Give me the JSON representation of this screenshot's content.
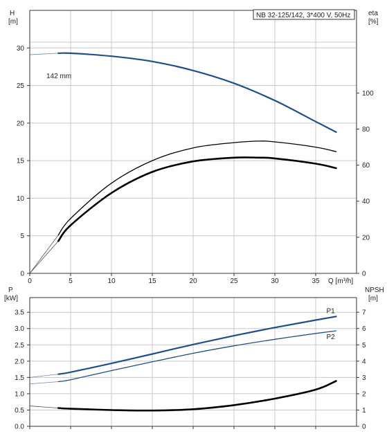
{
  "chart_data": [
    {
      "type": "line",
      "title": "NB 32-125/142, 3*400 V, 50Hz",
      "xlabel": "Q [m³/h]",
      "ylabel_left": [
        "H",
        "[m]"
      ],
      "ylabel_right": [
        "eta",
        "[%]"
      ],
      "x_ticks": [
        0,
        5,
        10,
        15,
        20,
        25,
        30,
        35
      ],
      "y_left_ticks": [
        0,
        5,
        10,
        15,
        20,
        25,
        30
      ],
      "y_right_ticks": [
        0,
        20,
        40,
        60,
        80,
        100
      ],
      "xlim": [
        0,
        40
      ],
      "ylim_left": [
        0,
        35
      ],
      "ylim_right": [
        0,
        145.8
      ],
      "grid": true,
      "annotation": "142 mm",
      "series": [
        {
          "axis": "left",
          "color": "#1f4e8c",
          "width": 2.2,
          "dashed_extension": true,
          "x": [
            0,
            3.5,
            5,
            10,
            15,
            20,
            25,
            30,
            35,
            37.5
          ],
          "y": [
            29.1,
            29.3,
            29.3,
            28.9,
            28.2,
            27.0,
            25.3,
            23.0,
            20.2,
            18.8
          ]
        },
        {
          "axis": "left",
          "color": "#000000",
          "width": 1.3,
          "dashed_extension": true,
          "x": [
            0,
            3.5,
            5,
            10,
            15,
            20,
            25,
            28,
            30,
            35,
            37.5
          ],
          "y": [
            0,
            5.1,
            7.3,
            12.0,
            15.0,
            16.7,
            17.4,
            17.6,
            17.5,
            16.8,
            16.2
          ]
        },
        {
          "axis": "left",
          "color": "#000000",
          "width": 2.6,
          "dashed_extension": true,
          "x": [
            0,
            3.5,
            5,
            10,
            15,
            20,
            25,
            28,
            30,
            35,
            37.5
          ],
          "y": [
            0,
            4.3,
            6.4,
            10.7,
            13.5,
            14.9,
            15.4,
            15.4,
            15.3,
            14.6,
            14.0
          ]
        }
      ]
    },
    {
      "type": "line",
      "ylabel_left": [
        "P",
        "[kW]"
      ],
      "ylabel_right": [
        "NPSH",
        "[m]"
      ],
      "y_left_ticks": [
        0.0,
        0.5,
        1.0,
        1.5,
        2.0,
        2.5,
        3.0,
        3.5
      ],
      "y_left_tick_labels": [
        "0.0",
        "0.5",
        "1.0",
        "1.5",
        "2.0",
        "2.5",
        "3.0",
        "3.5"
      ],
      "y_right_ticks": [
        0,
        1,
        2,
        3,
        4,
        5,
        6,
        7
      ],
      "xlim": [
        0,
        40
      ],
      "ylim_left": [
        0,
        3.95
      ],
      "ylim_right": [
        0,
        7.9
      ],
      "grid": true,
      "series": [
        {
          "name": "P1",
          "axis": "left",
          "color": "#1f4e8c",
          "width": 2.2,
          "dashed_extension": true,
          "x": [
            0,
            3.5,
            5,
            10,
            15,
            20,
            25,
            30,
            35,
            37.5
          ],
          "y": [
            1.5,
            1.6,
            1.66,
            1.93,
            2.22,
            2.51,
            2.78,
            3.03,
            3.26,
            3.37
          ]
        },
        {
          "name": "P2",
          "axis": "left",
          "color": "#1f4e8c",
          "width": 1.3,
          "dashed_extension": true,
          "x": [
            0,
            3.5,
            5,
            10,
            15,
            20,
            25,
            30,
            35,
            37.5
          ],
          "y": [
            1.3,
            1.37,
            1.43,
            1.71,
            1.98,
            2.24,
            2.47,
            2.67,
            2.85,
            2.93
          ]
        },
        {
          "axis": "right",
          "color": "#000000",
          "width": 2.6,
          "dashed_extension": true,
          "x": [
            0,
            3.5,
            5,
            10,
            15,
            20,
            25,
            30,
            35,
            37.5
          ],
          "y": [
            1.25,
            1.12,
            1.08,
            1.0,
            0.97,
            1.05,
            1.3,
            1.7,
            2.25,
            2.78
          ]
        }
      ]
    }
  ]
}
